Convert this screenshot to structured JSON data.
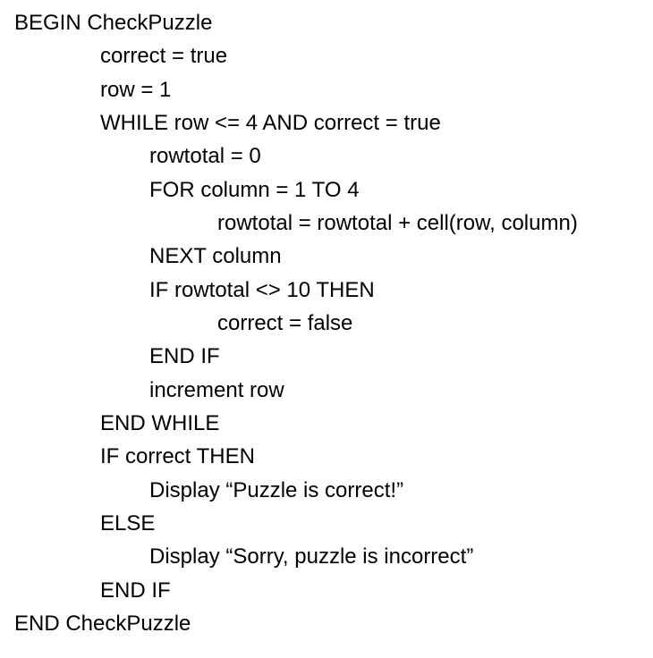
{
  "pseudocode": {
    "lines": [
      "BEGIN CheckPuzzle",
      "correct = true",
      "row = 1",
      "WHILE row <= 4 AND correct = true",
      "rowtotal = 0",
      "FOR column = 1 TO 4",
      "rowtotal = rowtotal + cell(row, column)",
      "NEXT column",
      "IF rowtotal <> 10 THEN",
      "correct = false",
      "END IF",
      "increment row",
      "END WHILE",
      "IF correct THEN",
      "Display “Puzzle is correct!”",
      "ELSE",
      "Display “Sorry, puzzle is incorrect”",
      "END IF",
      "END CheckPuzzle"
    ]
  }
}
